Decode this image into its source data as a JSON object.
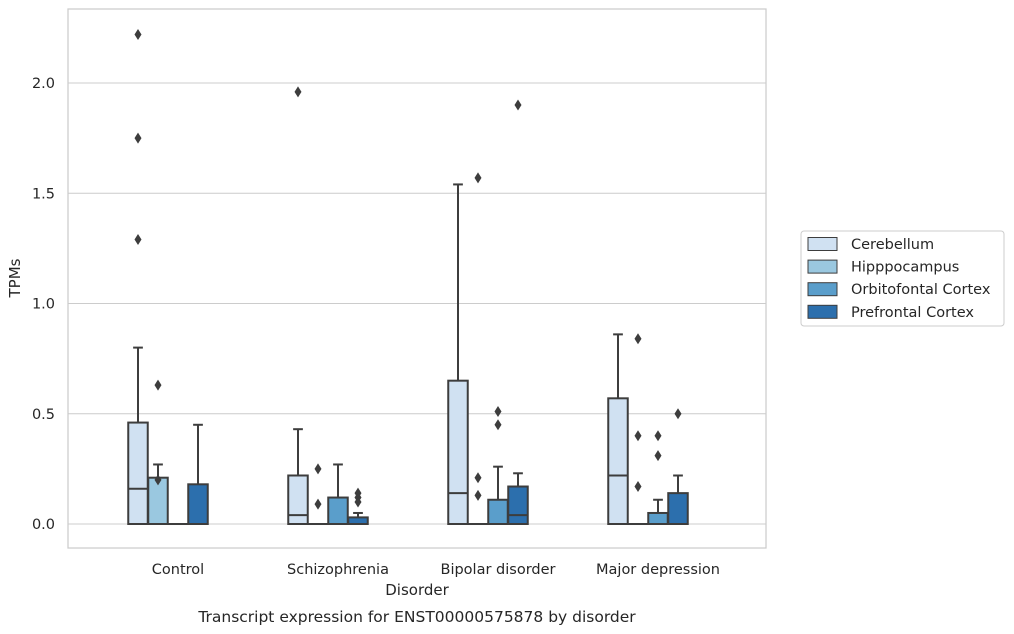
{
  "chart_data": {
    "type": "box",
    "title": "",
    "caption": "Transcript expression for ENST00000575878 by disorder",
    "xlabel": "Disorder",
    "ylabel": "TPMs",
    "ylim": [
      -0.11,
      2.34
    ],
    "yticks": [
      0.0,
      0.5,
      1.0,
      1.5,
      2.0
    ],
    "ytick_labels": [
      "0.0",
      "0.5",
      "1.0",
      "1.5",
      "2.0"
    ],
    "grid": "horizontal",
    "legend_position": "right",
    "categories": [
      "Control",
      "Schizophrenia",
      "Bipolar disorder",
      "Major depression"
    ],
    "series": [
      {
        "name": "Cerebellum",
        "color": "#d0e1f2",
        "boxes": [
          {
            "min": 0.0,
            "q1": 0.0,
            "median": 0.16,
            "q3": 0.46,
            "max": 0.8,
            "outliers": [
              1.29,
              1.75,
              2.22
            ]
          },
          {
            "min": 0.0,
            "q1": 0.0,
            "median": 0.04,
            "q3": 0.22,
            "max": 0.43,
            "outliers": [
              1.96
            ]
          },
          {
            "min": 0.0,
            "q1": 0.0,
            "median": 0.14,
            "q3": 0.65,
            "max": 1.54,
            "outliers": []
          },
          {
            "min": 0.0,
            "q1": 0.0,
            "median": 0.22,
            "q3": 0.57,
            "max": 0.86,
            "outliers": []
          }
        ]
      },
      {
        "name": "Hipppocampus",
        "color": "#9ac8e0",
        "boxes": [
          {
            "min": 0.0,
            "q1": 0.0,
            "median": 0.0,
            "q3": 0.21,
            "max": 0.27,
            "outliers": [
              0.2,
              0.63
            ]
          },
          {
            "min": 0.0,
            "q1": 0.0,
            "median": 0.0,
            "q3": 0.0,
            "max": 0.0,
            "outliers": [
              0.09,
              0.25
            ]
          },
          {
            "min": 0.0,
            "q1": 0.0,
            "median": 0.0,
            "q3": 0.0,
            "max": 0.0,
            "outliers": [
              0.13,
              0.21,
              1.57
            ]
          },
          {
            "min": 0.0,
            "q1": 0.0,
            "median": 0.0,
            "q3": 0.0,
            "max": 0.0,
            "outliers": [
              0.17,
              0.4,
              0.84
            ]
          }
        ]
      },
      {
        "name": "Orbitofontal Cortex",
        "color": "#5a9ecb",
        "boxes": [
          {
            "min": 0.0,
            "q1": 0.0,
            "median": 0.0,
            "q3": 0.0,
            "max": 0.0,
            "outliers": []
          },
          {
            "min": 0.0,
            "q1": 0.0,
            "median": 0.0,
            "q3": 0.12,
            "max": 0.27,
            "outliers": []
          },
          {
            "min": 0.0,
            "q1": 0.0,
            "median": 0.0,
            "q3": 0.11,
            "max": 0.26,
            "outliers": [
              0.45,
              0.51
            ]
          },
          {
            "min": 0.0,
            "q1": 0.0,
            "median": 0.0,
            "q3": 0.05,
            "max": 0.11,
            "outliers": [
              0.31,
              0.4
            ]
          }
        ]
      },
      {
        "name": "Prefrontal Cortex",
        "color": "#2c6fad",
        "boxes": [
          {
            "min": 0.0,
            "q1": 0.0,
            "median": 0.0,
            "q3": 0.18,
            "max": 0.45,
            "outliers": []
          },
          {
            "min": 0.0,
            "q1": 0.0,
            "median": 0.0,
            "q3": 0.03,
            "max": 0.05,
            "outliers": [
              0.1,
              0.12,
              0.14
            ]
          },
          {
            "min": 0.0,
            "q1": 0.0,
            "median": 0.04,
            "q3": 0.17,
            "max": 0.23,
            "outliers": [
              1.9
            ]
          },
          {
            "min": 0.0,
            "q1": 0.0,
            "median": 0.0,
            "q3": 0.14,
            "max": 0.22,
            "outliers": [
              0.5
            ]
          }
        ]
      }
    ]
  }
}
